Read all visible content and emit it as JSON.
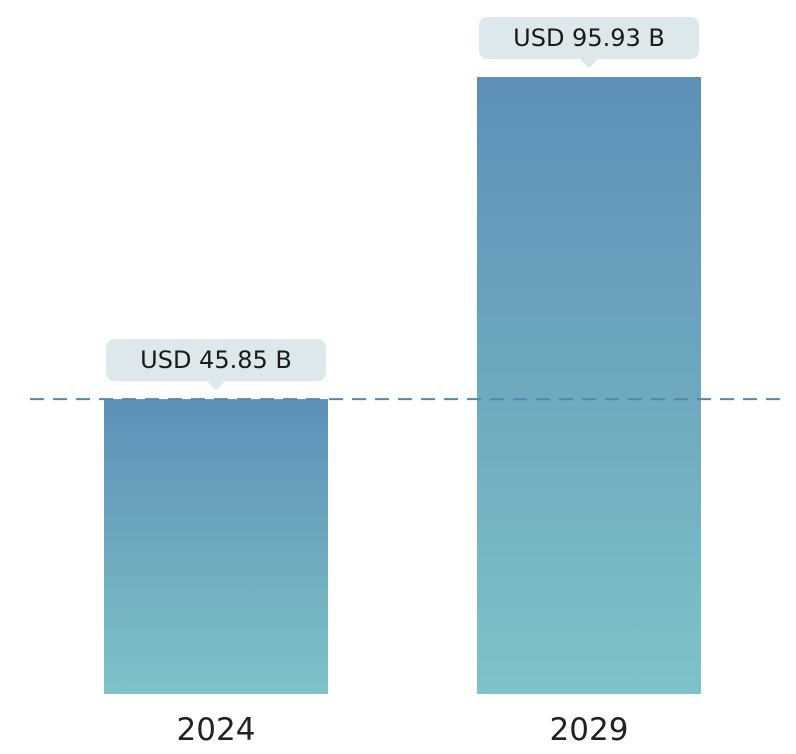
{
  "chart_data": {
    "type": "bar",
    "categories": [
      "2024",
      "2029"
    ],
    "values": [
      45.85,
      95.93
    ],
    "value_labels": [
      "USD 45.85 B",
      "USD 95.93 B"
    ],
    "title": "",
    "xlabel": "",
    "ylabel": "",
    "ylim": [
      0,
      95.93
    ],
    "grid": false,
    "legend": "none",
    "reference_line": {
      "value": 45.85,
      "style": "dashed"
    },
    "colors": {
      "bar_top": "#5d8fb7",
      "bar_bottom": "#7fc2c8",
      "callout_bg": "#dde8ec",
      "reference_line": "#5a86ad"
    }
  }
}
